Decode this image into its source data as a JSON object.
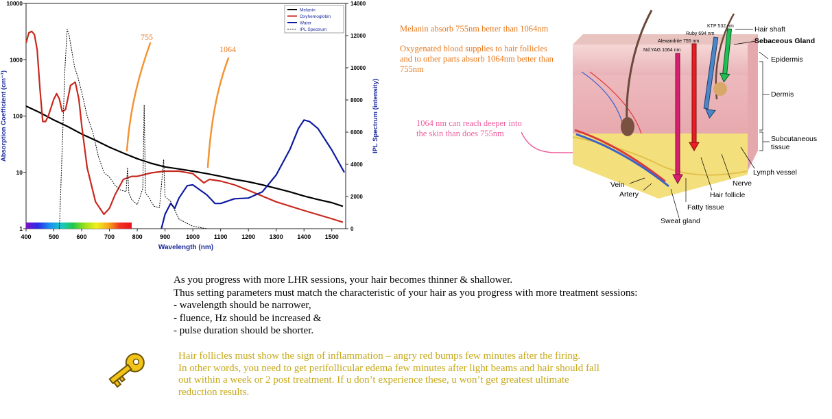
{
  "chart_data": {
    "type": "line",
    "xlabel": "Wavelength (nm)",
    "ylabel": "Absorption Coefficient (cm⁻¹)",
    "y2label": "IPL Spectrum (intensity)",
    "xlim": [
      400,
      1550
    ],
    "ylim": [
      1,
      10000
    ],
    "y_scale": "log",
    "y2lim": [
      0,
      14000
    ],
    "x_ticks": [
      "400",
      "500",
      "600",
      "700",
      "800",
      "900",
      "1000",
      "1100",
      "1200",
      "1300",
      "1400",
      "1500"
    ],
    "y_ticks": [
      "1",
      "10",
      "100",
      "1000",
      "10000"
    ],
    "y2_ticks": [
      "0",
      "2000",
      "4000",
      "6000",
      "8000",
      "10000",
      "12000",
      "14000"
    ],
    "legend_position": "top-right",
    "series": [
      {
        "name": "Melanin",
        "color": "#000000",
        "style": "solid",
        "axis": "left",
        "x": [
          400,
          450,
          500,
          550,
          600,
          650,
          700,
          750,
          800,
          850,
          900,
          950,
          1000,
          1050,
          1100,
          1150,
          1200,
          1250,
          1300,
          1350,
          1400,
          1450,
          1500,
          1540
        ],
        "y": [
          150,
          115,
          85,
          65,
          48,
          37,
          28,
          22,
          17.5,
          14.5,
          12.5,
          11.5,
          10.5,
          9.5,
          8.5,
          7.5,
          6.8,
          6.0,
          5.2,
          4.5,
          3.8,
          3.3,
          2.9,
          2.5
        ]
      },
      {
        "name": "Oxyhemoglobin",
        "color": "#c8281e",
        "style": "solid",
        "axis": "left",
        "x": [
          400,
          410,
          420,
          430,
          440,
          450,
          460,
          470,
          480,
          500,
          510,
          520,
          530,
          542,
          550,
          560,
          577,
          590,
          600,
          620,
          650,
          680,
          700,
          720,
          750,
          780,
          800,
          850,
          900,
          950,
          1000,
          1040,
          1060,
          1100,
          1150,
          1200,
          1300,
          1400,
          1500,
          1540
        ],
        "y": [
          2000,
          3000,
          3200,
          2800,
          1500,
          300,
          80,
          80,
          100,
          200,
          250,
          200,
          120,
          130,
          200,
          350,
          400,
          200,
          70,
          12,
          3,
          1.8,
          2.3,
          4,
          7.5,
          8.5,
          8.5,
          9.8,
          10.5,
          10.5,
          9.5,
          6.5,
          7.5,
          7,
          6,
          4.8,
          3,
          2.1,
          1.5,
          1.3
        ]
      },
      {
        "name": "Water",
        "color": "#0d1aa0",
        "style": "solid",
        "axis": "left",
        "x": [
          887,
          900,
          920,
          935,
          950,
          980,
          1000,
          1050,
          1080,
          1100,
          1150,
          1200,
          1250,
          1300,
          1350,
          1380,
          1400,
          1420,
          1450,
          1500,
          1545
        ],
        "y": [
          1,
          1.8,
          2.8,
          2.3,
          3.5,
          5.8,
          6,
          4,
          2.8,
          2.8,
          3.4,
          3.5,
          4.5,
          9,
          26,
          60,
          85,
          80,
          60,
          25,
          10
        ]
      },
      {
        "name": "IPL Spectrum",
        "color": "#000000",
        "style": "dashed",
        "axis": "right",
        "x": [
          520,
          530,
          540,
          548,
          555,
          565,
          575,
          585,
          600,
          620,
          640,
          660,
          680,
          700,
          720,
          740,
          760,
          765,
          770,
          780,
          800,
          820,
          825,
          830,
          840,
          860,
          880,
          895,
          900,
          920,
          950,
          1000,
          1050
        ],
        "y": [
          0,
          5000,
          10000,
          12400,
          12000,
          11000,
          10000,
          9500,
          8500,
          7000,
          6000,
          4500,
          3500,
          3200,
          2700,
          2400,
          2300,
          3800,
          2200,
          1800,
          1500,
          2500,
          7700,
          2200,
          2000,
          1400,
          1300,
          4300,
          2000,
          1700,
          600,
          150,
          0
        ]
      }
    ],
    "annotations": [
      "755",
      "1064"
    ]
  },
  "notes": {
    "melanin": "Melanin absorb 755nm better than 1064nm",
    "oxy_line1": "Oxygenated blood supplies to hair follicles",
    "oxy_line2": "and to other parts absorb 1064nm better than",
    "oxy_line3": "755nm",
    "deep_line1": "1064 nm can reach deeper into",
    "deep_line2": "the skin than does 755nm"
  },
  "skin_diagram": {
    "lasers": [
      "KTP 532 nm",
      "Ruby 694 nm",
      "Alexandrite 755 nm",
      "Nd:YAG 1064 nm"
    ],
    "labels": [
      "Hair shaft",
      "Sebaceous Gland",
      "Epidermis",
      "Dermis",
      "Subcutaneous",
      "tissue",
      "Lymph vessel",
      "Nerve",
      "Hair follicle",
      "Fatty tissue",
      "Sweat gland",
      "Artery",
      "Vein"
    ]
  },
  "body": {
    "line1": "As you progress with more LHR sessions, your hair becomes thinner & shallower.",
    "line2": "Thus setting parameters must match the characteristic of your hair as you progress with more treatment sessions:",
    "line3": "- wavelength should be narrower,",
    "line4": "- fluence, Hz should be increased &",
    "line5": "- pulse duration should be shorter."
  },
  "key_note": {
    "line1": "Hair follicles must show the sign of inflammation – angry red bumps few minutes after the firing.",
    "line2": "In other words, you need to get perifollicular edema few minutes after light beams and hair should fall",
    "line3": "out within a week or 2 post treatment. If u don’t experience these, u won’t get greatest ultimate",
    "line4": "reduction results."
  },
  "colors": {
    "annotation_orange": "#e8791e",
    "annotation_pink": "#ee5f9f",
    "note_gold": "#c6a817"
  }
}
